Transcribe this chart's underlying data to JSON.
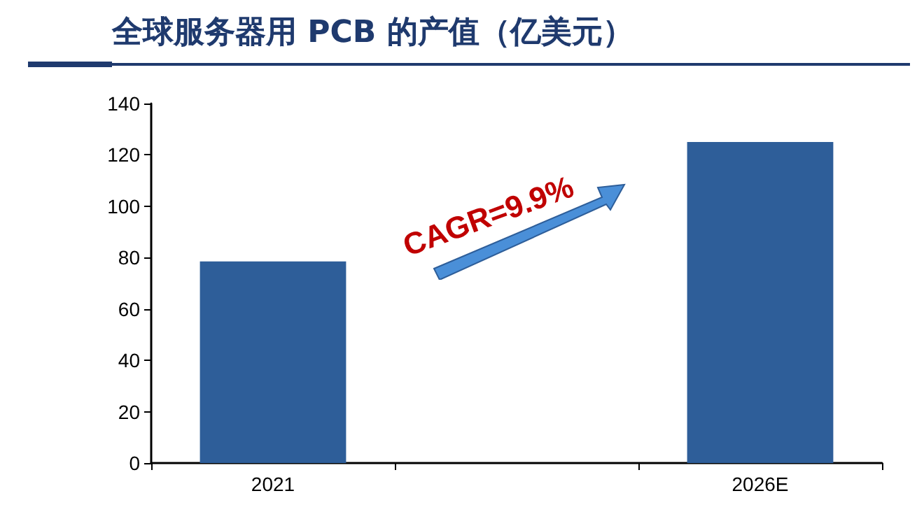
{
  "chart_data": {
    "type": "bar",
    "title": "全球服务器用 PCB 的产值（亿美元）",
    "categories": [
      "2021",
      null,
      "2026E"
    ],
    "values": [
      78.5,
      null,
      125
    ],
    "color": "#2e5e99",
    "ylim": [
      0,
      140
    ],
    "yticks": [
      0,
      20,
      40,
      60,
      80,
      100,
      120,
      140
    ],
    "grid": false,
    "annotations": [
      "CAGR=9.9%"
    ]
  }
}
